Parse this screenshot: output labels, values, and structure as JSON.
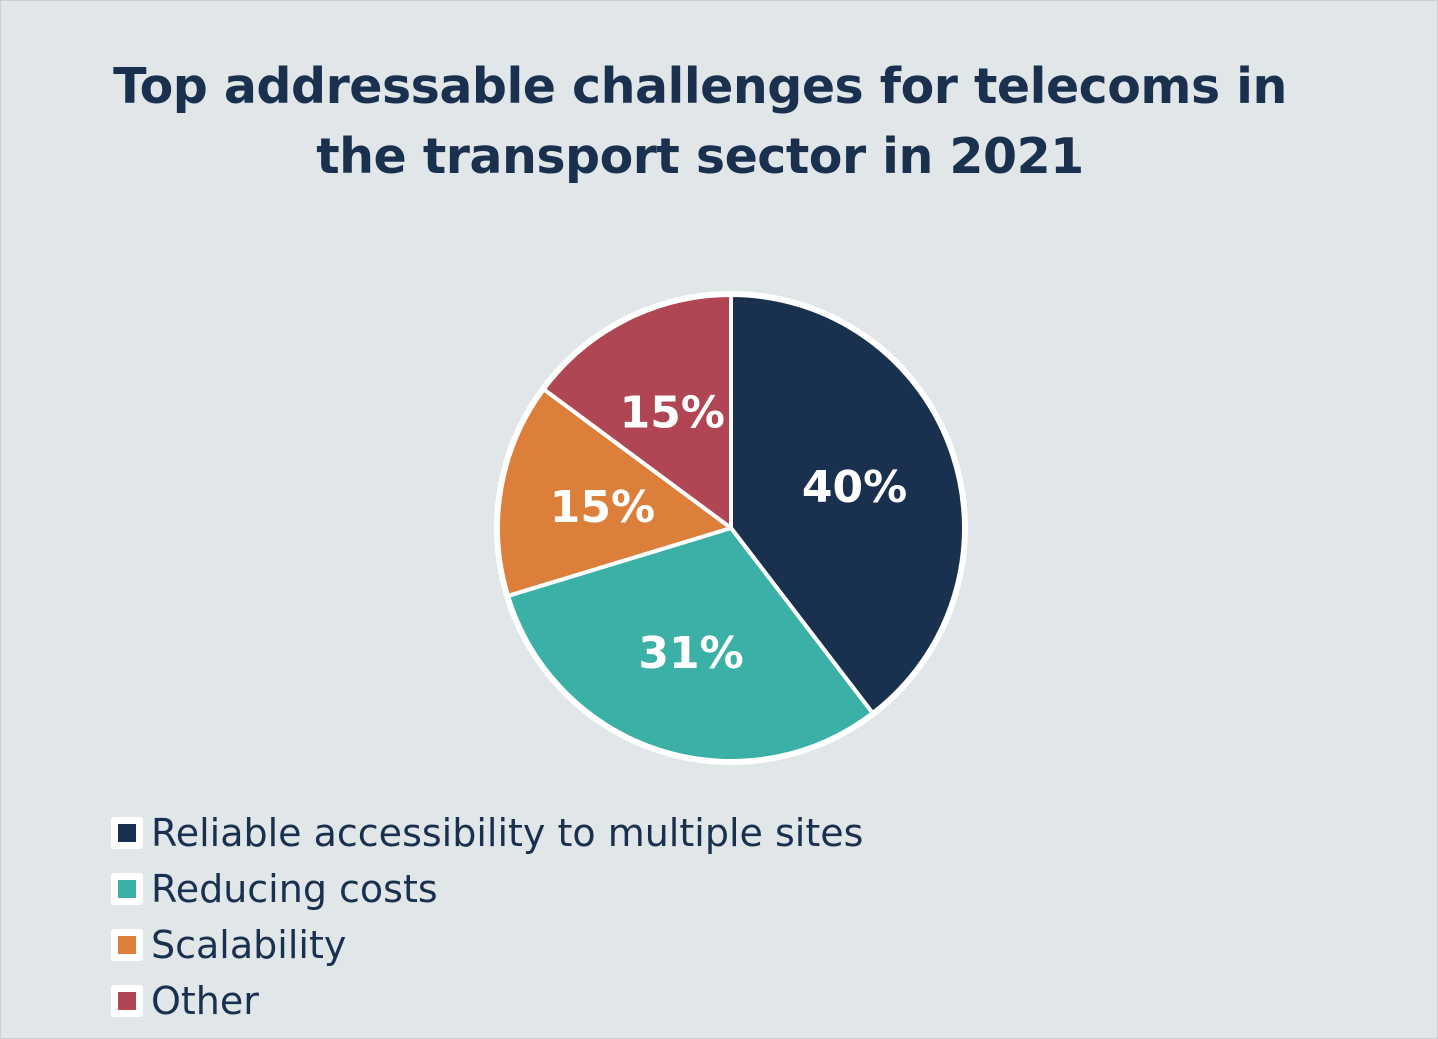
{
  "chart_data": {
    "type": "pie",
    "title": "Top addressable challenges for telecoms in the transport sector in 2021",
    "title_lines": [
      "Top addressable challenges for telecoms in",
      "the transport sector in 2021"
    ],
    "categories": [
      "Reliable accessibility to multiple sites",
      "Reducing costs",
      "Scalability",
      "Other"
    ],
    "values": [
      40,
      31,
      15,
      15
    ],
    "labels": [
      "40%",
      "31%",
      "15%",
      "15%"
    ],
    "colors": [
      "#19314f",
      "#3bb0a6",
      "#dc7f3b",
      "#b04654"
    ],
    "legend_position": "bottom-left",
    "start_angle": "12 o'clock, clockwise"
  }
}
